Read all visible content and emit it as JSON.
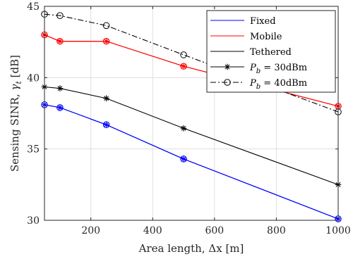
{
  "chart_data": {
    "type": "line",
    "xlabel": "Area length, Δx [m]",
    "ylabel": "Sensing SINR, γ_t [dB]",
    "xlim": [
      50,
      1000
    ],
    "ylim": [
      30,
      45
    ],
    "xticks": [
      200,
      400,
      600,
      800,
      1000
    ],
    "yticks": [
      30,
      35,
      40,
      45
    ],
    "grid": true,
    "legend_position": "top-right",
    "legend": [
      {
        "label": "Fixed",
        "color": "#0000ff",
        "style": "solid"
      },
      {
        "label": "Mobile",
        "color": "#ff0000",
        "style": "solid"
      },
      {
        "label": "Tethered",
        "color": "#000000",
        "style": "solid"
      },
      {
        "label": "P_b = 30dBm",
        "color": "#000000",
        "style": "solid",
        "marker": "asterisk"
      },
      {
        "label": "P_b = 40dBm",
        "color": "#000000",
        "style": "dashdot",
        "marker": "circle"
      }
    ],
    "x": [
      50,
      100,
      250,
      500,
      1000
    ],
    "series": [
      {
        "name": "Fixed",
        "color": "#0000ff",
        "style": "solid",
        "marker": "asterisk",
        "values": [
          38.1,
          37.9,
          36.7,
          34.3,
          30.1
        ]
      },
      {
        "name": "Fixed",
        "color": "#0000ff",
        "style": "solid",
        "marker": "circle",
        "values": [
          38.1,
          37.9,
          36.7,
          34.3,
          30.1
        ]
      },
      {
        "name": "Mobile",
        "color": "#ff0000",
        "style": "solid",
        "marker": "asterisk",
        "values": [
          43.0,
          42.55,
          42.55,
          40.8,
          38.0
        ]
      },
      {
        "name": "Mobile",
        "color": "#ff0000",
        "style": "solid",
        "marker": "circle",
        "values": [
          43.0,
          42.55,
          42.55,
          40.8,
          38.0
        ]
      },
      {
        "name": "Tethered",
        "color": "#000000",
        "style": "solid",
        "marker": "asterisk",
        "values": [
          39.35,
          39.25,
          38.55,
          36.45,
          32.5
        ]
      },
      {
        "name": "Tethered",
        "color": "#000000",
        "style": "dashdot",
        "marker": "circle",
        "values": [
          44.45,
          44.35,
          43.65,
          41.6,
          37.6
        ]
      }
    ]
  }
}
